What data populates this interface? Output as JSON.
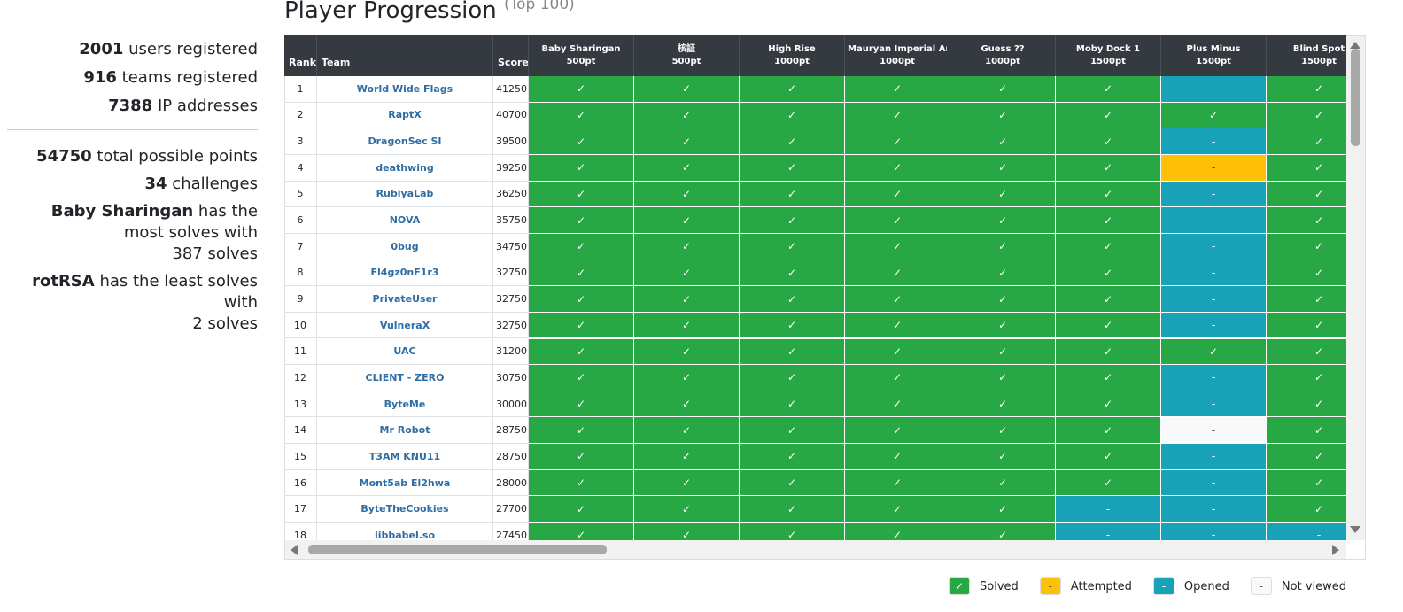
{
  "sidebar": {
    "registration": [
      {
        "value": 2001,
        "text": "users registered"
      },
      {
        "value": 916,
        "text": "teams registered"
      },
      {
        "value": 7388,
        "text": "IP addresses"
      }
    ],
    "challenge_stats": [
      {
        "value": 54750,
        "text": "total possible points"
      },
      {
        "value": 34,
        "text": "challenges"
      }
    ],
    "most_solved": {
      "name": "Baby Sharingan",
      "text": "has the most solves with",
      "count": 387,
      "unit": "solves"
    },
    "least_solved": {
      "name": "rotRSA",
      "text": "has the least solves with",
      "count": 2,
      "unit": "solves"
    }
  },
  "title": "Player Progression",
  "subtitle": "(Top 100)",
  "table": {
    "headers": [
      "Rank",
      "Team",
      "Score"
    ],
    "challenges": [
      {
        "name": "Baby Sharingan",
        "points": "500pt"
      },
      {
        "name": "核証",
        "points": "500pt"
      },
      {
        "name": "High Rise",
        "points": "1000pt"
      },
      {
        "name": "Mauryan Imperial Arch...",
        "points": "1000pt"
      },
      {
        "name": "Guess ??",
        "points": "1000pt"
      },
      {
        "name": "Moby Dock 1",
        "points": "1500pt"
      },
      {
        "name": "Plus Minus",
        "points": "1500pt"
      },
      {
        "name": "Blind Spot",
        "points": "1500pt"
      }
    ],
    "rows": [
      {
        "rank": 1,
        "team": "World Wide Flags",
        "score": 41250,
        "cells": [
          "Solved",
          "Solved",
          "Solved",
          "Solved",
          "Solved",
          "Solved",
          "Opened",
          "Solved"
        ]
      },
      {
        "rank": 2,
        "team": "RaptX",
        "score": 40700,
        "cells": [
          "Solved",
          "Solved",
          "Solved",
          "Solved",
          "Solved",
          "Solved",
          "Solved",
          "Solved"
        ]
      },
      {
        "rank": 3,
        "team": "DragonSec SI",
        "score": 39500,
        "cells": [
          "Solved",
          "Solved",
          "Solved",
          "Solved",
          "Solved",
          "Solved",
          "Opened",
          "Solved"
        ]
      },
      {
        "rank": 4,
        "team": "deathwing",
        "score": 39250,
        "cells": [
          "Solved",
          "Solved",
          "Solved",
          "Solved",
          "Solved",
          "Solved",
          "Attempted",
          "Solved"
        ]
      },
      {
        "rank": 5,
        "team": "RubiyaLab",
        "score": 36250,
        "cells": [
          "Solved",
          "Solved",
          "Solved",
          "Solved",
          "Solved",
          "Solved",
          "Opened",
          "Solved"
        ]
      },
      {
        "rank": 6,
        "team": "NOVA",
        "score": 35750,
        "cells": [
          "Solved",
          "Solved",
          "Solved",
          "Solved",
          "Solved",
          "Solved",
          "Opened",
          "Solved"
        ]
      },
      {
        "rank": 7,
        "team": "0bug",
        "score": 34750,
        "cells": [
          "Solved",
          "Solved",
          "Solved",
          "Solved",
          "Solved",
          "Solved",
          "Opened",
          "Solved"
        ]
      },
      {
        "rank": 8,
        "team": "Fl4gz0nF1r3",
        "score": 32750,
        "cells": [
          "Solved",
          "Solved",
          "Solved",
          "Solved",
          "Solved",
          "Solved",
          "Opened",
          "Solved"
        ]
      },
      {
        "rank": 9,
        "team": "PrivateUser",
        "score": 32750,
        "cells": [
          "Solved",
          "Solved",
          "Solved",
          "Solved",
          "Solved",
          "Solved",
          "Opened",
          "Solved"
        ]
      },
      {
        "rank": 10,
        "team": "VulneraX",
        "score": 32750,
        "cells": [
          "Solved",
          "Solved",
          "Solved",
          "Solved",
          "Solved",
          "Solved",
          "Opened",
          "Solved"
        ]
      },
      {
        "rank": 11,
        "team": "UAC",
        "score": 31200,
        "cells": [
          "Solved",
          "Solved",
          "Solved",
          "Solved",
          "Solved",
          "Solved",
          "Solved",
          "Solved"
        ]
      },
      {
        "rank": 12,
        "team": "CLIENT - ZERO",
        "score": 30750,
        "cells": [
          "Solved",
          "Solved",
          "Solved",
          "Solved",
          "Solved",
          "Solved",
          "Opened",
          "Solved"
        ]
      },
      {
        "rank": 13,
        "team": "ByteMe",
        "score": 30000,
        "cells": [
          "Solved",
          "Solved",
          "Solved",
          "Solved",
          "Solved",
          "Solved",
          "Opened",
          "Solved"
        ]
      },
      {
        "rank": 14,
        "team": "Mr Robot",
        "score": 28750,
        "cells": [
          "Solved",
          "Solved",
          "Solved",
          "Solved",
          "Solved",
          "Solved",
          "Not viewed",
          "Solved"
        ]
      },
      {
        "rank": 15,
        "team": "T3AM KNU11",
        "score": 28750,
        "cells": [
          "Solved",
          "Solved",
          "Solved",
          "Solved",
          "Solved",
          "Solved",
          "Opened",
          "Solved"
        ]
      },
      {
        "rank": 16,
        "team": "Mont5ab El2hwa",
        "score": 28000,
        "cells": [
          "Solved",
          "Solved",
          "Solved",
          "Solved",
          "Solved",
          "Solved",
          "Opened",
          "Solved"
        ]
      },
      {
        "rank": 17,
        "team": "ByteTheCookies",
        "score": 27700,
        "cells": [
          "Solved",
          "Solved",
          "Solved",
          "Solved",
          "Solved",
          "Opened",
          "Opened",
          "Solved"
        ]
      },
      {
        "rank": 18,
        "team": "libbabel.so",
        "score": 27450,
        "cells": [
          "Solved",
          "Solved",
          "Solved",
          "Solved",
          "Solved",
          "Opened",
          "Opened",
          "Opened"
        ]
      }
    ]
  },
  "legend": [
    {
      "label": "Solved",
      "symbol": "✓",
      "color": "#28a745"
    },
    {
      "label": "Attempted",
      "symbol": "-",
      "color": "#ffc107"
    },
    {
      "label": "Opened",
      "symbol": "-",
      "color": "#17a2b8"
    },
    {
      "label": "Not viewed",
      "symbol": "-",
      "color": "#f8f9fa"
    }
  ]
}
